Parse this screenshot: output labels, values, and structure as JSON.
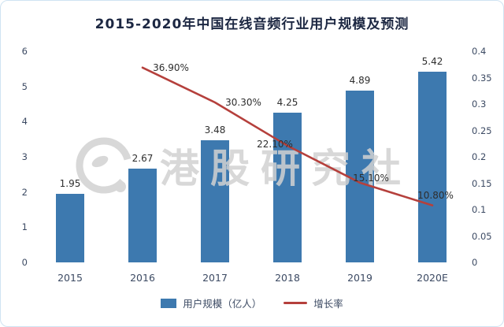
{
  "chart_data": {
    "type": "combo",
    "title": "2015-2020年中国在线音频行业用户规模及预测",
    "categories": [
      "2015",
      "2016",
      "2017",
      "2018",
      "2019",
      "2020E"
    ],
    "series": [
      {
        "name": "用户规模（亿人）",
        "type": "bar",
        "axis": "left",
        "values": [
          1.95,
          2.67,
          3.48,
          4.25,
          4.89,
          5.42
        ],
        "labels": [
          "1.95",
          "2.67",
          "3.48",
          "4.25",
          "4.89",
          "5.42"
        ],
        "color": "#3d79af"
      },
      {
        "name": "增长率",
        "type": "line",
        "axis": "right",
        "values": [
          null,
          0.369,
          0.303,
          0.221,
          0.151,
          0.108
        ],
        "labels": [
          "",
          "36.90%",
          "30.30%",
          "22.10%",
          "15.10%",
          "10.80%"
        ],
        "color": "#b5403c"
      }
    ],
    "left_axis": {
      "min": 0,
      "max": 6,
      "ticks": [
        "0",
        "1",
        "2",
        "3",
        "4",
        "5",
        "6"
      ]
    },
    "right_axis": {
      "min": 0,
      "max": 0.4,
      "ticks": [
        "0",
        "0.05",
        "0.1",
        "0.15",
        "0.2",
        "0.25",
        "0.3",
        "0.35",
        "0.4"
      ]
    },
    "legend": [
      {
        "label": "用户规模（亿人）",
        "marker": "rect",
        "color": "#3d79af"
      },
      {
        "label": "增长率",
        "marker": "line",
        "color": "#b5403c"
      }
    ],
    "grid": "off",
    "legend_position": "bottom"
  },
  "watermark": {
    "text": "港股研究社"
  },
  "colors": {
    "bar": "#3d79af",
    "line": "#b5403c",
    "title": "#1c2742",
    "axis_text": "#3c4a63",
    "watermark": "#d2d2d2"
  }
}
